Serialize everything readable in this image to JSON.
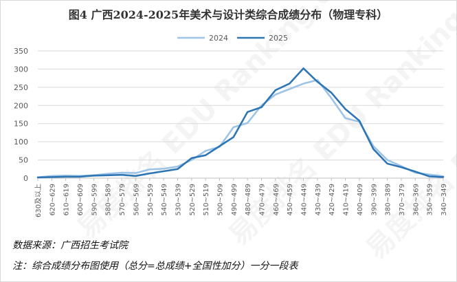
{
  "chart_data": {
    "type": "line",
    "title": "图4 广西2024-2025年美术与设计类综合成绩分布（物理专科）",
    "xlabel": "",
    "ylabel": "",
    "ylim": [
      0,
      350
    ],
    "yticks": [
      0,
      50,
      100,
      150,
      200,
      250,
      300,
      350
    ],
    "grid": true,
    "legend_position": "top-center",
    "categories": [
      "630及以上",
      "620~629",
      "610~619",
      "600~609",
      "590~599",
      "580~589",
      "570~579",
      "560~569",
      "550~559",
      "540~549",
      "530~539",
      "520~529",
      "510~519",
      "500~509",
      "490~499",
      "480~489",
      "470~479",
      "460~469",
      "450~459",
      "440~449",
      "430~439",
      "420~429",
      "410~419",
      "400~409",
      "390~399",
      "380~389",
      "370~379",
      "360~369",
      "350~359",
      "340~349"
    ],
    "series": [
      {
        "name": "2024",
        "color": "#9dc3e6",
        "values": [
          2,
          6,
          7,
          6,
          8,
          12,
          15,
          14,
          24,
          26,
          32,
          50,
          75,
          86,
          140,
          152,
          200,
          230,
          245,
          260,
          270,
          220,
          165,
          155,
          88,
          50,
          33,
          15,
          10,
          5
        ]
      },
      {
        "name": "2025",
        "color": "#2e75b6",
        "values": [
          2,
          3,
          4,
          4,
          7,
          8,
          9,
          6,
          13,
          19,
          25,
          55,
          63,
          88,
          113,
          182,
          195,
          242,
          260,
          302,
          265,
          235,
          190,
          158,
          80,
          40,
          30,
          18,
          5,
          3
        ]
      }
    ]
  },
  "notes": {
    "source": "数据来源：广西招生考试院",
    "remark": "注：综合成绩分布图使用（总分=总成绩+全国性加分）一分一段表"
  },
  "watermark": "易度排名 EDU Ranking.cn"
}
